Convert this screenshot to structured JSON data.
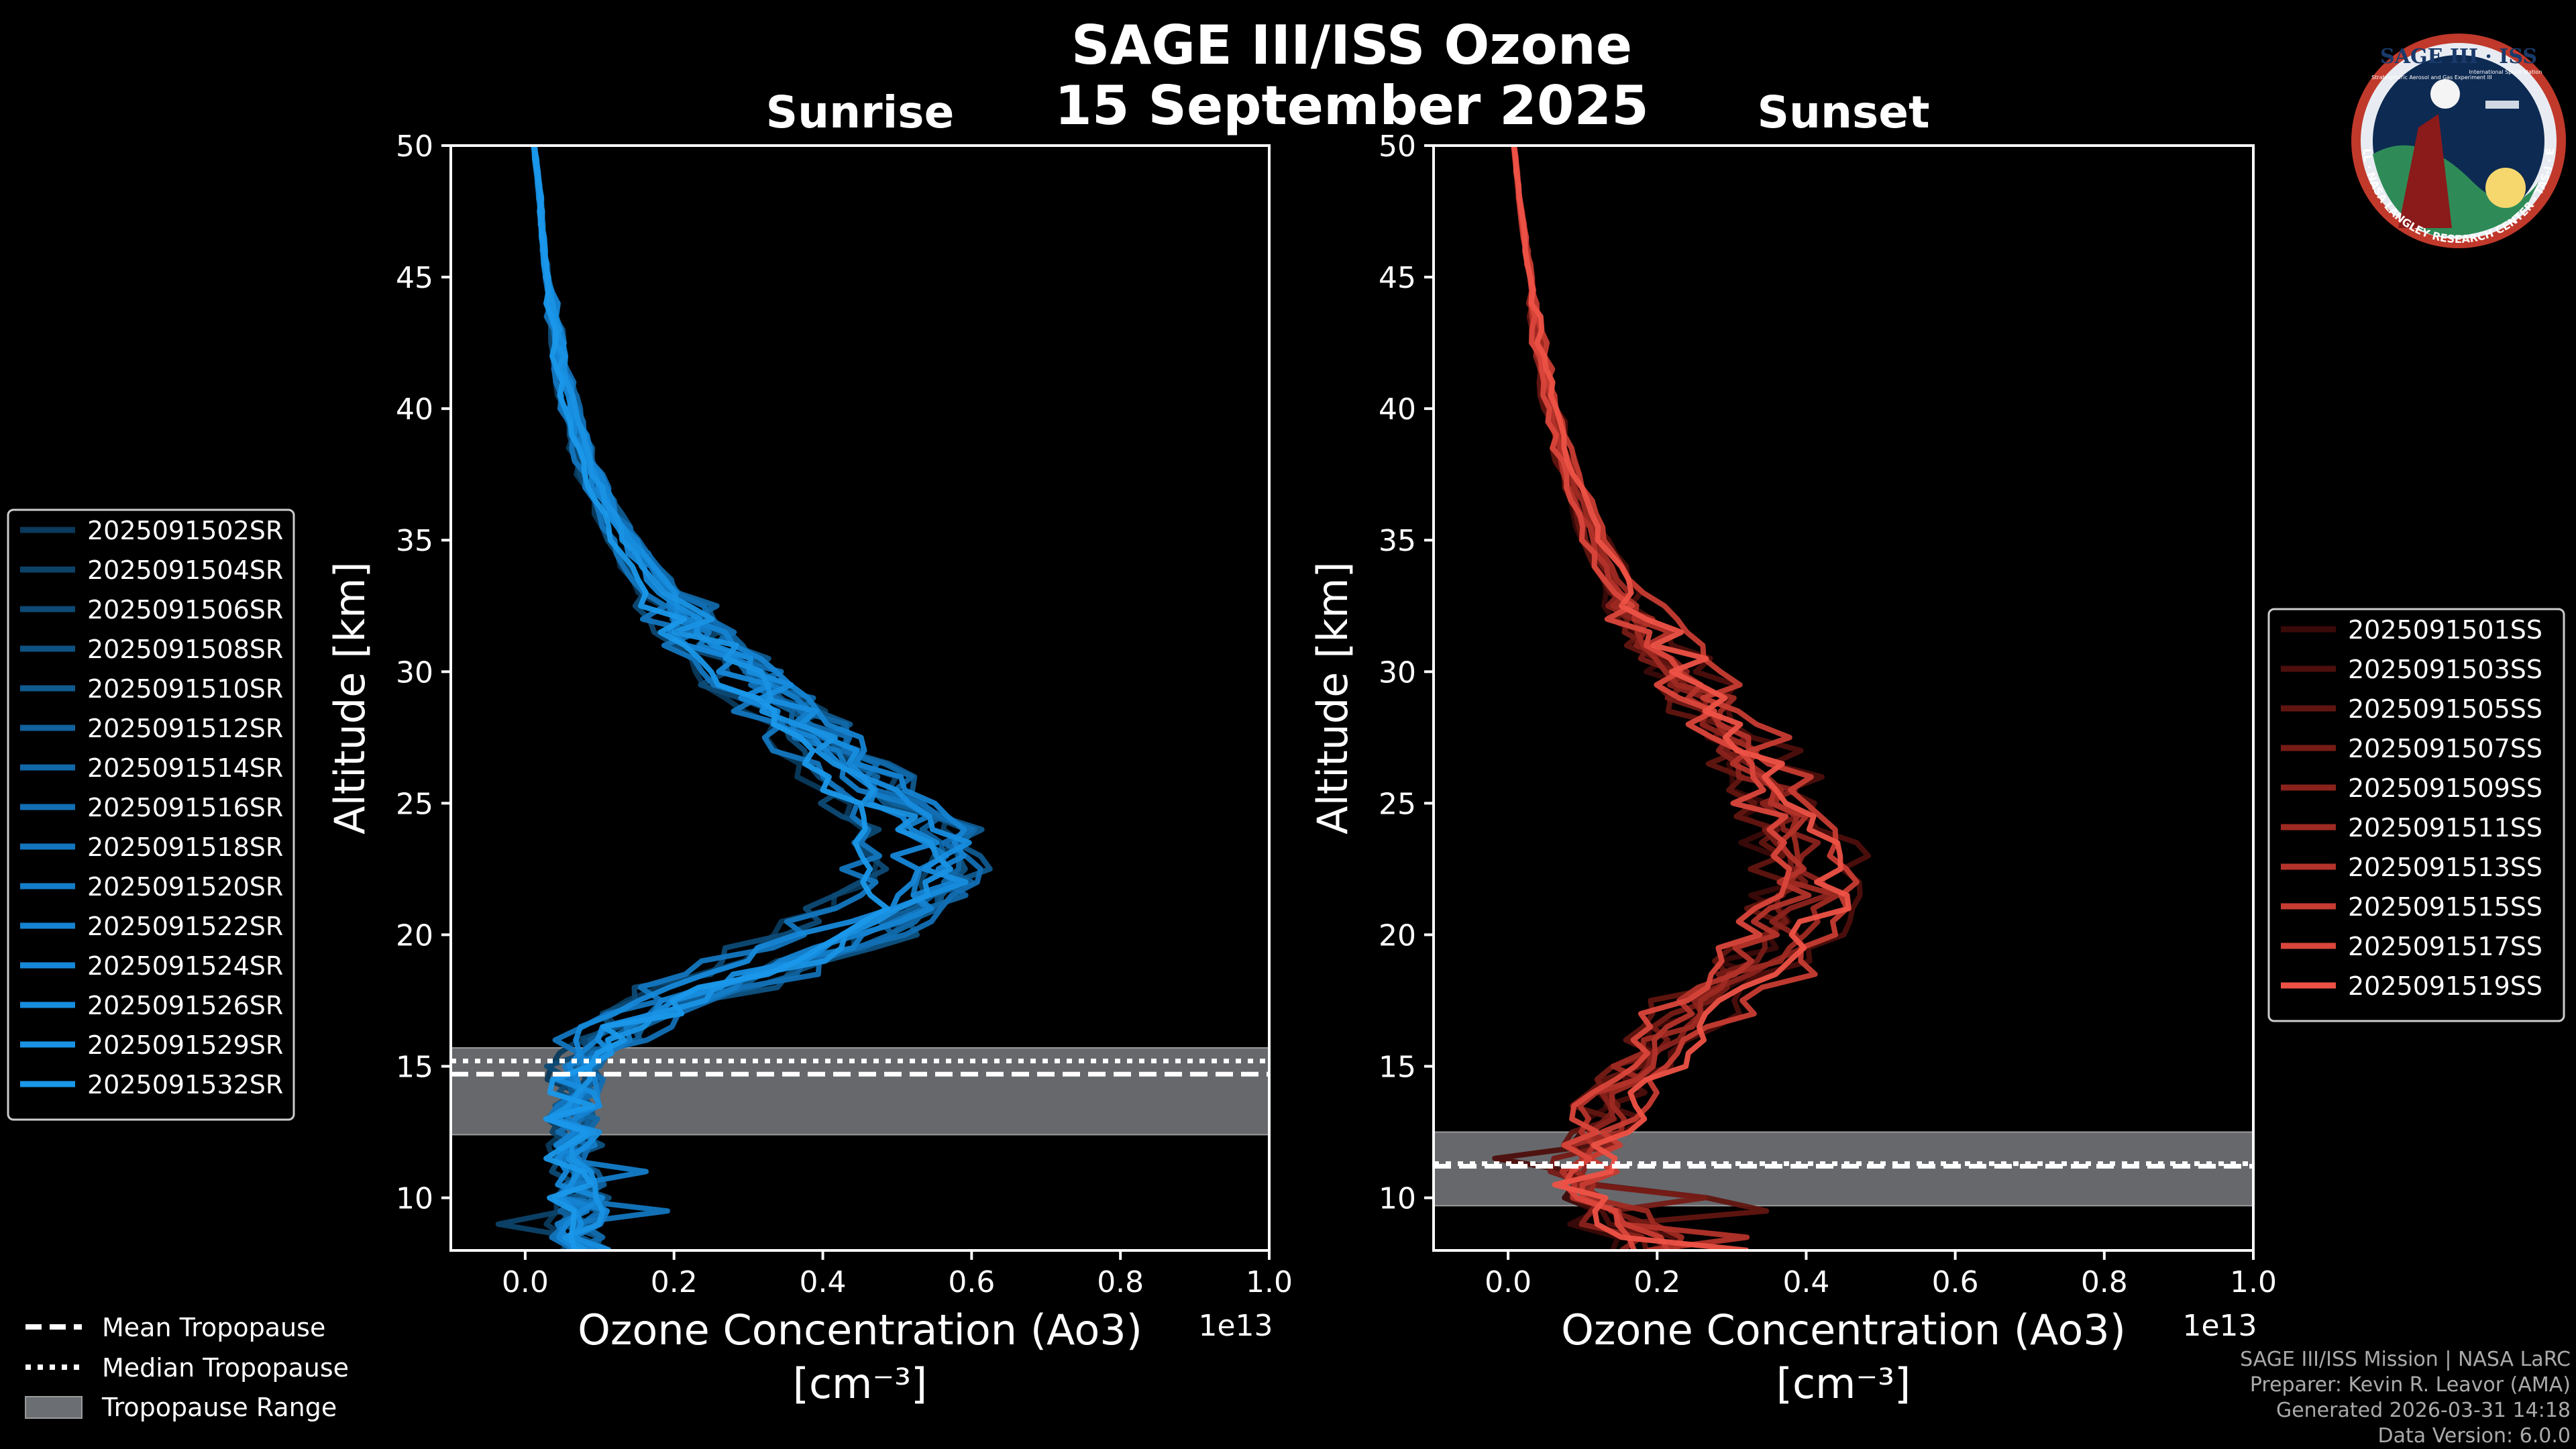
{
  "title_line1": "SAGE III/ISS Ozone",
  "title_line2": "15 September 2025",
  "logo": {
    "top_text": "SAGE III · ISS",
    "ring_text": "BALL · NASA LANGLEY RESEARCH CENTER · TAS-I · ESA",
    "sub_text": "Stratospheric Aerosol and Gas Experiment III",
    "iss_text": "International Space Station"
  },
  "chart_data": [
    {
      "type": "line",
      "title": "Sunrise",
      "xlabel": "Ozone Concentration (Ao3)",
      "xunit": "[cm⁻³]",
      "ylabel": "Altitude [km]",
      "offset_text": "1e13",
      "xlim": [
        -0.1,
        1.0
      ],
      "ylim": [
        8,
        50
      ],
      "xticks": [
        "0.0",
        "0.2",
        "0.4",
        "0.6",
        "0.8",
        "1.0"
      ],
      "yticks": [
        "10",
        "15",
        "20",
        "25",
        "30",
        "35",
        "40",
        "45",
        "50"
      ],
      "tropopause": {
        "mean": 14.7,
        "median": 15.2,
        "range": [
          12.4,
          15.7
        ]
      },
      "base_profile": {
        "alt": [
          8,
          9,
          10,
          11,
          12,
          13,
          14,
          15,
          16,
          17,
          18,
          19,
          20,
          21,
          22,
          23,
          24,
          25,
          26,
          27,
          28,
          29,
          30,
          31,
          32,
          33,
          34,
          35,
          36,
          37,
          38,
          40,
          42,
          44,
          46,
          48,
          50
        ],
        "conc": [
          0.07,
          0.07,
          0.07,
          0.07,
          0.065,
          0.06,
          0.06,
          0.07,
          0.09,
          0.15,
          0.24,
          0.33,
          0.42,
          0.48,
          0.52,
          0.53,
          0.51,
          0.47,
          0.43,
          0.39,
          0.36,
          0.32,
          0.28,
          0.245,
          0.21,
          0.18,
          0.155,
          0.13,
          0.11,
          0.095,
          0.08,
          0.06,
          0.045,
          0.035,
          0.025,
          0.02,
          0.012
        ]
      },
      "series": [
        {
          "name": "2025091502SR",
          "color": "#0a3a5c"
        },
        {
          "name": "2025091504SR",
          "color": "#0c4268"
        },
        {
          "name": "2025091506SR",
          "color": "#0d4a75"
        },
        {
          "name": "2025091508SR",
          "color": "#0e5282"
        },
        {
          "name": "2025091510SR",
          "color": "#0f5a8f"
        },
        {
          "name": "2025091512SR",
          "color": "#10619c"
        },
        {
          "name": "2025091514SR",
          "color": "#1168a8"
        },
        {
          "name": "2025091516SR",
          "color": "#126fb4"
        },
        {
          "name": "2025091518SR",
          "color": "#1376bf"
        },
        {
          "name": "2025091520SR",
          "color": "#147dc9"
        },
        {
          "name": "2025091522SR",
          "color": "#1583d2"
        },
        {
          "name": "2025091524SR",
          "color": "#1688d9"
        },
        {
          "name": "2025091526SR",
          "color": "#178ddf"
        },
        {
          "name": "2025091529SR",
          "color": "#1992e4"
        },
        {
          "name": "2025091532SR",
          "color": "#1a98ea"
        }
      ]
    },
    {
      "type": "line",
      "title": "Sunset",
      "xlabel": "Ozone Concentration (Ao3)",
      "xunit": "[cm⁻³]",
      "ylabel": "Altitude [km]",
      "offset_text": "1e13",
      "xlim": [
        -0.1,
        1.0
      ],
      "ylim": [
        8,
        50
      ],
      "xticks": [
        "0.0",
        "0.2",
        "0.4",
        "0.6",
        "0.8",
        "1.0"
      ],
      "yticks": [
        "10",
        "15",
        "20",
        "25",
        "30",
        "35",
        "40",
        "45",
        "50"
      ],
      "tropopause": {
        "mean": 11.2,
        "median": 11.3,
        "range": [
          9.7,
          12.5
        ]
      },
      "base_profile": {
        "alt": [
          8,
          9,
          10,
          11,
          12,
          13,
          14,
          15,
          16,
          17,
          18,
          19,
          20,
          21,
          22,
          23,
          24,
          25,
          26,
          27,
          28,
          29,
          30,
          31,
          32,
          33,
          34,
          35,
          36,
          37,
          38,
          40,
          42,
          44,
          46,
          48,
          50
        ],
        "conc": [
          0.2,
          0.15,
          0.1,
          0.1,
          0.12,
          0.14,
          0.16,
          0.19,
          0.22,
          0.26,
          0.31,
          0.36,
          0.39,
          0.41,
          0.42,
          0.41,
          0.4,
          0.38,
          0.36,
          0.33,
          0.3,
          0.27,
          0.24,
          0.21,
          0.185,
          0.16,
          0.14,
          0.12,
          0.105,
          0.09,
          0.08,
          0.06,
          0.045,
          0.035,
          0.025,
          0.015,
          0.008
        ]
      },
      "series": [
        {
          "name": "2025091501SS",
          "color": "#3a0a08"
        },
        {
          "name": "2025091503SS",
          "color": "#4d0f0c"
        },
        {
          "name": "2025091505SS",
          "color": "#611510"
        },
        {
          "name": "2025091507SS",
          "color": "#761b16"
        },
        {
          "name": "2025091509SS",
          "color": "#8a221c"
        },
        {
          "name": "2025091511SS",
          "color": "#9e2a22"
        },
        {
          "name": "2025091513SS",
          "color": "#b3332a"
        },
        {
          "name": "2025091515SS",
          "color": "#c73c32"
        },
        {
          "name": "2025091517SS",
          "color": "#da463b"
        },
        {
          "name": "2025091519SS",
          "color": "#ee5246"
        }
      ]
    }
  ],
  "trop_legend": {
    "mean": "Mean Tropopause",
    "median": "Median Tropopause",
    "range": "Tropopause Range"
  },
  "footer": [
    "SAGE III/ISS Mission | NASA LaRC",
    "Preparer: Kevin R. Leavor (AMA)",
    "Generated 2026-03-31 14:18",
    "Data Version: 6.0.0"
  ]
}
